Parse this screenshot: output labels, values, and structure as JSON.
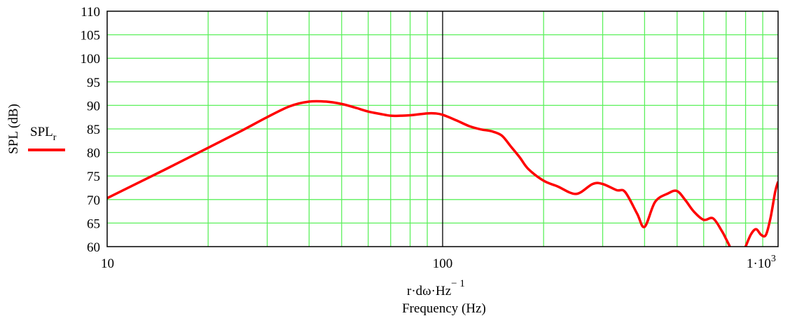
{
  "chart_data": {
    "type": "line",
    "xscale": "log",
    "xlim": [
      10,
      1000
    ],
    "ylim": [
      60,
      110
    ],
    "grid": true,
    "grid_color": "#5cf05c",
    "line_color": "#ff0000",
    "xticks": [
      "10",
      "100"
    ],
    "xtick_last": {
      "base": "1·10",
      "exp": "3"
    },
    "yticks": [
      "60",
      "65",
      "70",
      "75",
      "80",
      "85",
      "90",
      "95",
      "100",
      "105",
      "110"
    ],
    "xlabel_expr": {
      "base": "r·dω·Hz",
      "exp": "− 1"
    },
    "xlabel": "Frequency (Hz)",
    "ylabel": "SPL (dB)",
    "legend": {
      "name": "SPL",
      "sub": "r",
      "placement": "left"
    },
    "series": [
      {
        "x": [
          10,
          15,
          20,
          25,
          30,
          35,
          40,
          45,
          50,
          55,
          60,
          65,
          70,
          75,
          80,
          90,
          95,
          100,
          110,
          120,
          130,
          140,
          150,
          160,
          170,
          180,
          200,
          220,
          250,
          280,
          300,
          330,
          350,
          380,
          400,
          430,
          470,
          500,
          530,
          560,
          600,
          640,
          680,
          700,
          720,
          750,
          790,
          800,
          830,
          860,
          890,
          920,
          950,
          980,
          1000
        ],
        "y": [
          70.3,
          76.5,
          81.0,
          84.5,
          87.5,
          89.8,
          90.8,
          90.8,
          90.3,
          89.5,
          88.7,
          88.2,
          87.8,
          87.8,
          87.9,
          88.3,
          88.3,
          88.0,
          86.8,
          85.6,
          84.9,
          84.5,
          83.6,
          81.2,
          78.9,
          76.5,
          74.0,
          72.8,
          71.2,
          73.3,
          73.3,
          72.0,
          71.6,
          67.0,
          64.2,
          69.5,
          71.3,
          71.8,
          69.8,
          67.5,
          65.7,
          66.0,
          63.3,
          61.6,
          59.8,
          56.5,
          59.3,
          60.0,
          62.6,
          63.7,
          62.5,
          62.5,
          66.2,
          71.6,
          73.8
        ]
      }
    ]
  }
}
